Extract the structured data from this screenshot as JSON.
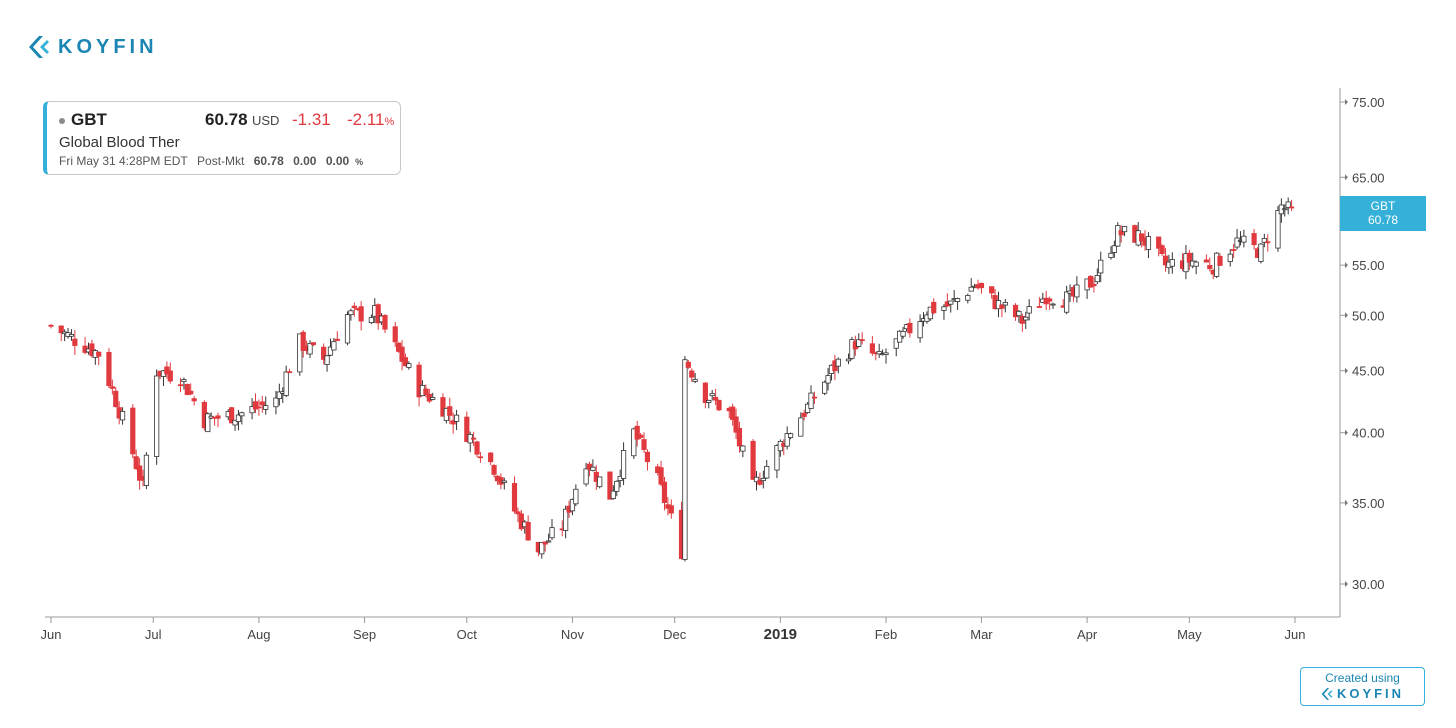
{
  "brand": {
    "logo_text": "KOYFIN",
    "accent_color": "#1b86b4",
    "light_accent": "#35b0d8"
  },
  "quote": {
    "ticker": "GBT",
    "price": "60.78",
    "currency": "USD",
    "change": "-1.31",
    "change_pct": "-2.11",
    "pct_symbol": "%",
    "company": "Global Blood Ther",
    "timestamp": "Fri May 31 4:28PM EDT",
    "post_label": "Post-Mkt",
    "post_price": "60.78",
    "post_change": "0.00",
    "post_change_pct": "0.00"
  },
  "price_tag": {
    "ticker": "GBT",
    "price": "60.78"
  },
  "footer": {
    "created_label": "Created using",
    "brand": "KOYFIN"
  },
  "chart_data": {
    "type": "candlestick",
    "title": "",
    "ticker": "GBT",
    "y_scale": "log",
    "ylim": [
      28,
      76
    ],
    "y_ticks": [
      "75.00",
      "65.00",
      "55.00",
      "50.00",
      "45.00",
      "40.00",
      "35.00",
      "30.00"
    ],
    "x_ticks": [
      "Jun",
      "Jul",
      "Aug",
      "Sep",
      "Oct",
      "Nov",
      "Dec",
      "2019",
      "Feb",
      "Mar",
      "Apr",
      "May",
      "Jun"
    ],
    "up_color": "#ffffff",
    "down_color": "#e0393e",
    "approx_close_path": [
      [
        "2018-06-01",
        49.0
      ],
      [
        "2018-06-15",
        46.5
      ],
      [
        "2018-06-22",
        41.0
      ],
      [
        "2018-06-28",
        36.0
      ],
      [
        "2018-07-02",
        45.0
      ],
      [
        "2018-07-09",
        44.5
      ],
      [
        "2018-07-16",
        41.0
      ],
      [
        "2018-07-27",
        41.5
      ],
      [
        "2018-08-06",
        42.5
      ],
      [
        "2018-08-13",
        47.5
      ],
      [
        "2018-08-20",
        46.0
      ],
      [
        "2018-08-27",
        50.0
      ],
      [
        "2018-09-04",
        50.2
      ],
      [
        "2018-09-10",
        47.0
      ],
      [
        "2018-09-17",
        43.5
      ],
      [
        "2018-09-24",
        42.0
      ],
      [
        "2018-10-01",
        40.0
      ],
      [
        "2018-10-09",
        37.5
      ],
      [
        "2018-10-15",
        34.5
      ],
      [
        "2018-10-22",
        32.0
      ],
      [
        "2018-10-29",
        33.5
      ],
      [
        "2018-11-05",
        38.0
      ],
      [
        "2018-11-12",
        35.5
      ],
      [
        "2018-11-19",
        40.0
      ],
      [
        "2018-11-26",
        36.5
      ],
      [
        "2018-12-03",
        32.0
      ],
      [
        "2018-12-04",
        46.0
      ],
      [
        "2018-12-10",
        43.0
      ],
      [
        "2018-12-17",
        41.5
      ],
      [
        "2018-12-24",
        36.0
      ],
      [
        "2019-01-02",
        39.5
      ],
      [
        "2019-01-09",
        42.0
      ],
      [
        "2019-01-16",
        45.0
      ],
      [
        "2019-01-23",
        47.5
      ],
      [
        "2019-01-30",
        46.0
      ],
      [
        "2019-02-06",
        48.0
      ],
      [
        "2019-02-13",
        50.5
      ],
      [
        "2019-02-20",
        51.0
      ],
      [
        "2019-02-27",
        53.0
      ],
      [
        "2019-03-06",
        51.0
      ],
      [
        "2019-03-13",
        49.5
      ],
      [
        "2019-03-20",
        52.0
      ],
      [
        "2019-03-27",
        51.5
      ],
      [
        "2019-04-03",
        53.5
      ],
      [
        "2019-04-10",
        58.5
      ],
      [
        "2019-04-17",
        58.0
      ],
      [
        "2019-04-24",
        55.0
      ],
      [
        "2019-05-01",
        55.5
      ],
      [
        "2019-05-08",
        55.0
      ],
      [
        "2019-05-15",
        57.5
      ],
      [
        "2019-05-22",
        56.5
      ],
      [
        "2019-05-28",
        61.5
      ],
      [
        "2019-05-31",
        60.78
      ]
    ]
  }
}
